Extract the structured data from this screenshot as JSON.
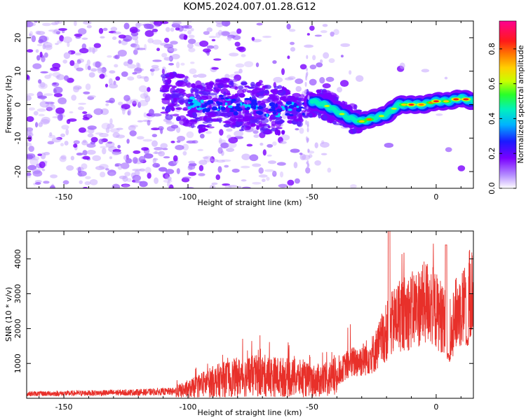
{
  "figure_title": "KOM5.2024.007.01.28.G12",
  "colors": {
    "snr_line": "#e8302a",
    "axis": "#000000",
    "colormap": [
      "#ffffff",
      "#7a00ff",
      "#1a1aff",
      "#00b2ff",
      "#00f0c0",
      "#29ff29",
      "#c8ff00",
      "#ffd000",
      "#ff7a00",
      "#ff1a1a",
      "#ff0090"
    ]
  },
  "chart_data": [
    {
      "type": "heatmap",
      "xlabel": "Height of straight line (km)",
      "ylabel": "Frequency (Hz)",
      "xlim": [
        -165,
        15
      ],
      "ylim": [
        -25,
        25
      ],
      "x_ticks": [
        -150,
        -100,
        -50,
        0
      ],
      "y_ticks": [
        -20,
        -10,
        0,
        10,
        20
      ],
      "colorbar": {
        "label": "Normalized spectral amplitude",
        "range": [
          0,
          0.96
        ],
        "ticks": [
          0.0,
          0.2,
          0.4,
          0.6,
          0.8
        ]
      },
      "ridge": {
        "x": [
          -108,
          -100,
          -95,
          -90,
          -85,
          -80,
          -75,
          -70,
          -65,
          -60,
          -55,
          -50,
          -45,
          -40,
          -35,
          -30,
          -25,
          -20,
          -15,
          -10,
          -5,
          0,
          5,
          10,
          15
        ],
        "y": [
          3,
          1,
          -1,
          0,
          1,
          -1,
          0,
          -1,
          -2,
          -1,
          -2,
          1,
          0,
          -2,
          -4,
          -5,
          -4,
          -3,
          0,
          0,
          0,
          1,
          1,
          2,
          1
        ]
      }
    },
    {
      "type": "line",
      "xlabel": "Height of straight line (km)",
      "ylabel": "SNR (10 * v/v)",
      "xlim": [
        -165,
        15
      ],
      "ylim": [
        0,
        4800
      ],
      "x_ticks": [
        -150,
        -100,
        -50,
        0
      ],
      "y_ticks": [
        1000,
        2000,
        3000,
        4000
      ],
      "series": [
        {
          "x": [
            -165,
            -150,
            -140,
            -130,
            -120,
            -110,
            -105,
            -100,
            -95,
            -90,
            -85,
            -80,
            -75,
            -70,
            -65,
            -60,
            -55,
            -50,
            -45,
            -40,
            -37,
            -35,
            -30,
            -25,
            -20,
            -18,
            -15,
            -10,
            -8,
            -5,
            -3,
            0,
            3,
            5,
            8,
            10,
            13,
            15
          ],
          "y": [
            130,
            140,
            150,
            160,
            170,
            190,
            200,
            250,
            380,
            480,
            550,
            600,
            630,
            650,
            620,
            600,
            570,
            500,
            520,
            620,
            900,
            1000,
            1100,
            1300,
            1900,
            2100,
            2400,
            2500,
            2600,
            2700,
            2800,
            2500,
            2300,
            1900,
            2400,
            2600,
            2900,
            3100
          ]
        }
      ]
    }
  ]
}
